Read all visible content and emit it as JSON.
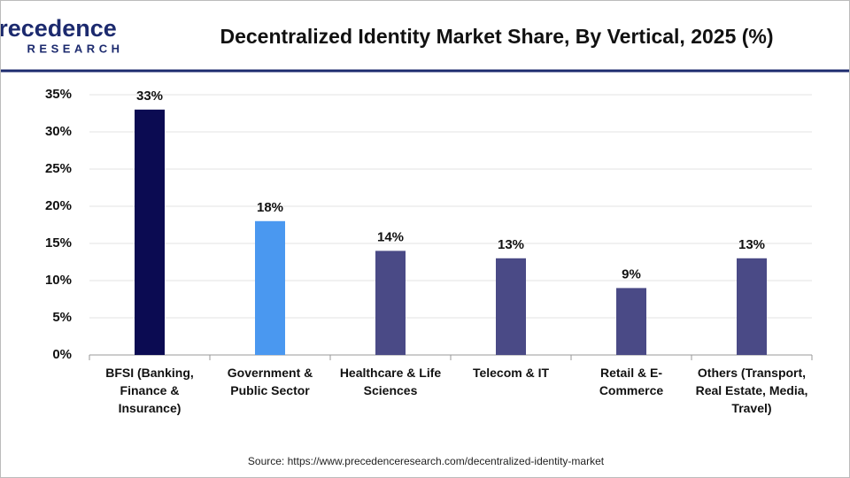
{
  "brand": {
    "name": "Precedence",
    "tagline": "RESEARCH"
  },
  "chart_data": {
    "type": "bar",
    "title": "Decentralized Identity Market Share, By Vertical, 2025 (%)",
    "categories": [
      "BFSI (Banking, Finance & Insurance)",
      "Government & Public Sector",
      "Healthcare & Life Sciences",
      "Telecom & IT",
      "Retail & E-Commerce",
      "Others (Transport, Real Estate, Media, Travel)"
    ],
    "values": [
      33,
      18,
      14,
      13,
      9,
      13
    ],
    "value_labels": [
      "33%",
      "18%",
      "14%",
      "13%",
      "9%",
      "13%"
    ],
    "colors": [
      "#0b0b52",
      "#4a98f0",
      "#4a4a86",
      "#4a4a86",
      "#4a4a86",
      "#4a4a86"
    ],
    "ylim": [
      0,
      35
    ],
    "yticks": [
      {
        "value": 0,
        "label": "0%"
      },
      {
        "value": 5,
        "label": "5%"
      },
      {
        "value": 10,
        "label": "10%"
      },
      {
        "value": 15,
        "label": "15%"
      },
      {
        "value": 20,
        "label": "20%"
      },
      {
        "value": 25,
        "label": "25%"
      },
      {
        "value": 30,
        "label": "30%"
      },
      {
        "value": 35,
        "label": "35%"
      }
    ],
    "grid": true,
    "source": "Source: https://www.precedenceresearch.com/decentralized-identity-market"
  }
}
